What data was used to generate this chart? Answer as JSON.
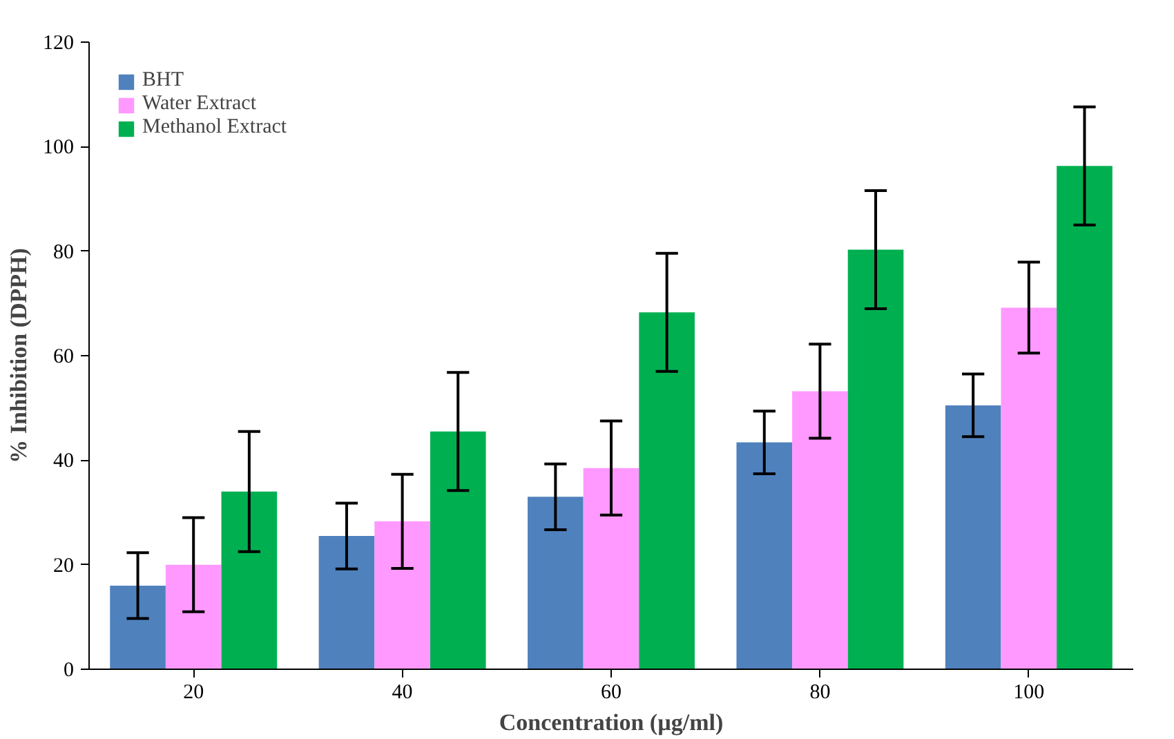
{
  "chart_data": {
    "type": "bar",
    "xlabel": "Concentration (µg/ml)",
    "ylabel": "% Inhibition (DPPH)",
    "categories": [
      "20",
      "40",
      "60",
      "80",
      "100"
    ],
    "series": [
      {
        "name": "BHT",
        "color": "#4f81bd",
        "values": [
          16,
          25.5,
          33,
          43.4,
          50.5
        ],
        "errors": [
          6.3,
          6.3,
          6.3,
          6,
          6
        ]
      },
      {
        "name": "Water Extract",
        "color": "#ff99ff",
        "values": [
          20,
          28.3,
          38.5,
          53.2,
          69.2
        ],
        "errors": [
          9,
          9,
          9,
          9,
          8.7
        ]
      },
      {
        "name": "Methanol Extract",
        "color": "#00b050",
        "values": [
          34,
          45.5,
          68.3,
          80.3,
          96.3
        ],
        "errors": [
          11.5,
          11.3,
          11.3,
          11.3,
          11.3
        ]
      }
    ],
    "ylim": [
      0,
      120
    ],
    "yticks": [
      0,
      20,
      40,
      60,
      80,
      100,
      120
    ],
    "grid": false,
    "legend": "top left"
  }
}
